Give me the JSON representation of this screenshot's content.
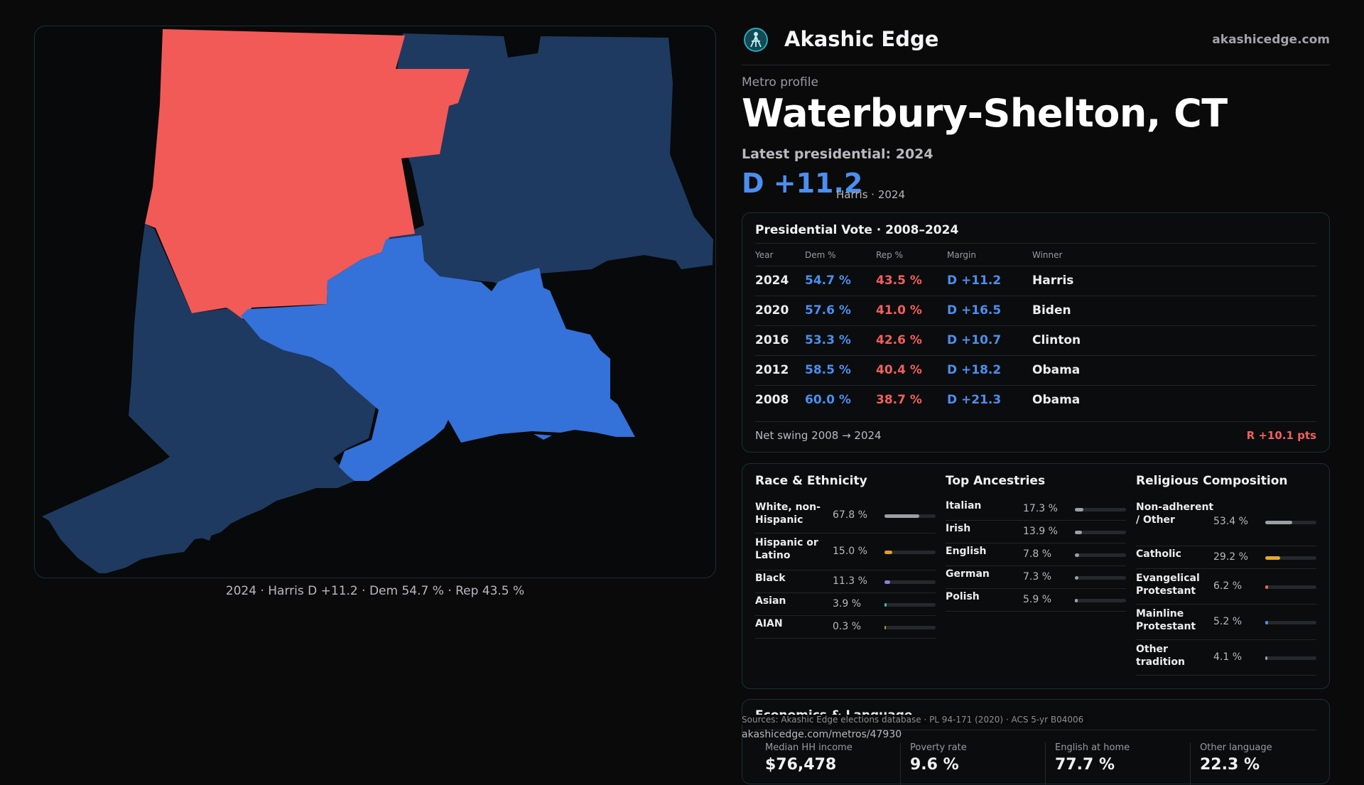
{
  "brand": {
    "name": "Akashic Edge",
    "url": "akashicedge.com"
  },
  "colors": {
    "dem_strong": "#3471d9",
    "dem_lean": "#1f3a60",
    "rep_strong": "#f25a57",
    "background": "#0a0a0b"
  },
  "map": {
    "caption": "2024 · Harris D +11.2 · Dem 54.7 % · Rep 43.5 %"
  },
  "profile": {
    "eyebrow": "Metro profile",
    "title": "Waterbury-Shelton, CT",
    "latest_label": "Latest presidential: 2024",
    "margin": "D +11.2",
    "margin_note": "Harris · 2024"
  },
  "vote_table": {
    "title": "Presidential Vote · 2008–2024",
    "headers": {
      "year": "Year",
      "dem": "Dem %",
      "rep": "Rep %",
      "margin": "Margin",
      "winner": "Winner"
    },
    "rows": [
      {
        "year": "2024",
        "dem": "54.7 %",
        "rep": "43.5 %",
        "margin": "D +11.2",
        "winner": "Harris"
      },
      {
        "year": "2020",
        "dem": "57.6 %",
        "rep": "41.0 %",
        "margin": "D +16.5",
        "winner": "Biden"
      },
      {
        "year": "2016",
        "dem": "53.3 %",
        "rep": "42.6 %",
        "margin": "D +10.7",
        "winner": "Clinton"
      },
      {
        "year": "2012",
        "dem": "58.5 %",
        "rep": "40.4 %",
        "margin": "D +18.2",
        "winner": "Obama"
      },
      {
        "year": "2008",
        "dem": "60.0 %",
        "rep": "38.7 %",
        "margin": "D +21.3",
        "winner": "Obama"
      }
    ],
    "swing_label": "Net swing 2008 → 2024",
    "swing_value": "R +10.1 pts"
  },
  "race": {
    "title": "Race & Ethnicity",
    "items": [
      {
        "label": "White, non-Hispanic",
        "value": "67.8 %",
        "pct": 67.8,
        "color": "#9aa0a8"
      },
      {
        "label": "Hispanic or Latino",
        "value": "15.0 %",
        "pct": 15.0,
        "color": "#e69a2e"
      },
      {
        "label": "Black",
        "value": "11.3 %",
        "pct": 11.3,
        "color": "#8b7fe0"
      },
      {
        "label": "Asian",
        "value": "3.9 %",
        "pct": 3.9,
        "color": "#3fbf9a"
      },
      {
        "label": "AIAN",
        "value": "0.3 %",
        "pct": 0.3,
        "color": "#c48a4a"
      }
    ]
  },
  "ancestry": {
    "title": "Top Ancestries",
    "items": [
      {
        "label": "Italian",
        "value": "17.3 %",
        "pct": 17.3,
        "color": "#9aa0a8"
      },
      {
        "label": "Irish",
        "value": "13.9 %",
        "pct": 13.9,
        "color": "#9aa0a8"
      },
      {
        "label": "English",
        "value": "7.8 %",
        "pct": 7.8,
        "color": "#9aa0a8"
      },
      {
        "label": "German",
        "value": "7.3 %",
        "pct": 7.3,
        "color": "#9aa0a8"
      },
      {
        "label": "Polish",
        "value": "5.9 %",
        "pct": 5.9,
        "color": "#9aa0a8"
      }
    ]
  },
  "religion": {
    "title": "Religious Composition",
    "items": [
      {
        "label": "Non-adherent / Other",
        "value": "53.4 %",
        "pct": 53.4,
        "color": "#9aa0a8"
      },
      {
        "label": "Catholic",
        "value": "29.2 %",
        "pct": 29.2,
        "color": "#e6a92e"
      },
      {
        "label": "Evangelical Protestant",
        "value": "6.2 %",
        "pct": 6.2,
        "color": "#f0605e"
      },
      {
        "label": "Mainline Protestant",
        "value": "5.2 %",
        "pct": 5.2,
        "color": "#4b8ff0"
      },
      {
        "label": "Other tradition",
        "value": "4.1 %",
        "pct": 4.1,
        "color": "#9aa0a8"
      }
    ]
  },
  "economics": {
    "title": "Economics & Language",
    "stats": [
      {
        "label": "Median HH income",
        "value": "$76,478"
      },
      {
        "label": "Poverty rate",
        "value": "9.6 %"
      },
      {
        "label": "English at home",
        "value": "77.7 %"
      },
      {
        "label": "Other language",
        "value": "22.3 %"
      }
    ]
  },
  "footer": {
    "sources": "Sources: Akashic Edge elections database · PL 94-171 (2020) · ACS 5-yr B04006",
    "url": "akashicedge.com/metros/47930"
  }
}
